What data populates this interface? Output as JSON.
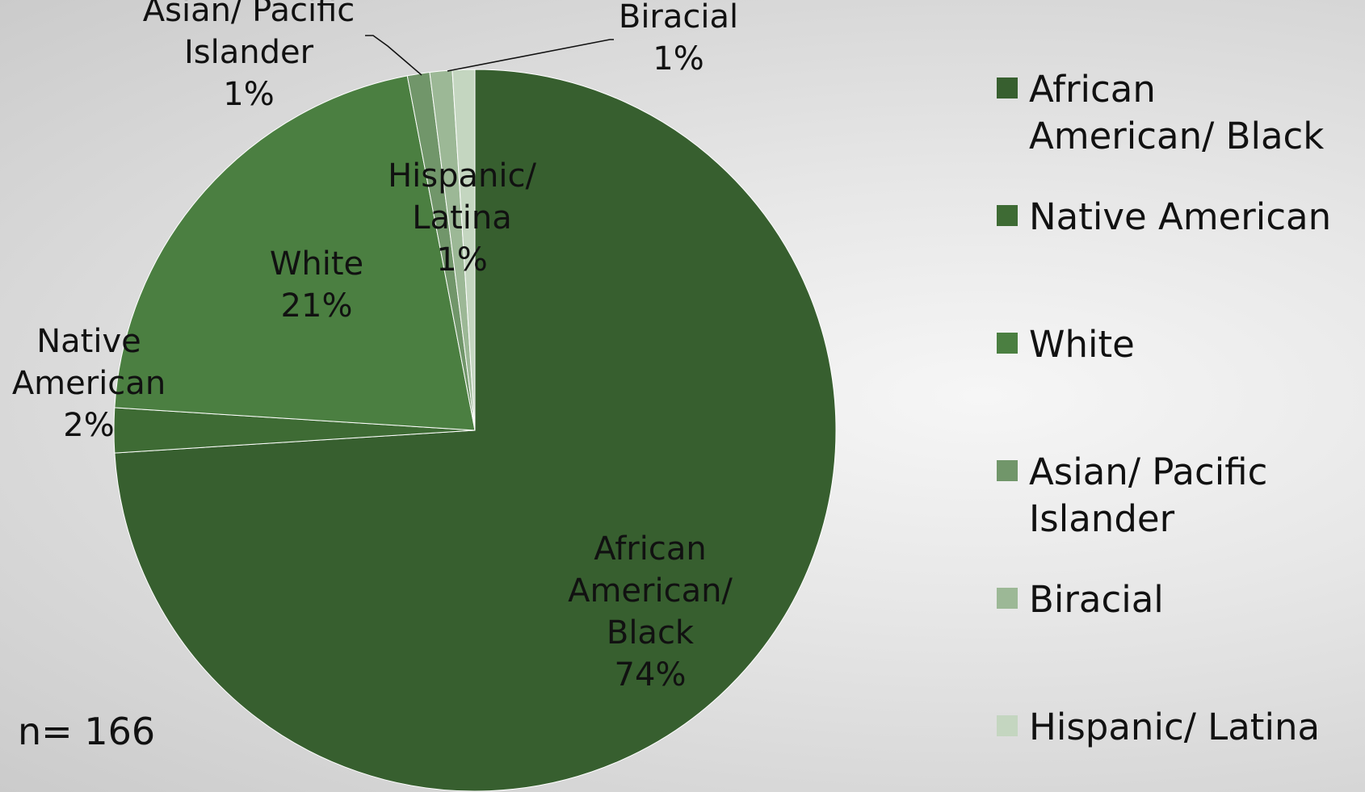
{
  "chart_data": {
    "type": "pie",
    "categories": [
      "African American/ Black",
      "Native American",
      "White",
      "Asian/ Pacific Islander",
      "Biracial",
      "Hispanic/ Latina"
    ],
    "values": [
      74,
      2,
      21,
      1,
      1,
      1
    ],
    "value_labels": [
      "74%",
      "2%",
      "21%",
      "1%",
      "1%",
      "1%"
    ],
    "slice_labels": [
      [
        "African",
        "American/",
        "Black",
        "74%"
      ],
      [
        "Native",
        "American",
        "2%"
      ],
      [
        "White",
        "21%"
      ],
      [
        "Asian/ Pacific",
        "Islander",
        "1%"
      ],
      [
        "Biracial",
        "1%"
      ],
      [
        "Hispanic/",
        "Latina",
        "1%"
      ]
    ],
    "colors": [
      "#375f2f",
      "#3e6b34",
      "#4b7f41",
      "#71966a",
      "#9cb896",
      "#c4d6c0"
    ],
    "legend": {
      "position": "right",
      "entries": [
        [
          "African",
          "American/ Black"
        ],
        [
          "Native American"
        ],
        [
          "White"
        ],
        [
          "Asian/ Pacific",
          "Islander"
        ],
        [
          "Biracial"
        ],
        [
          "Hispanic/ Latina"
        ]
      ]
    },
    "note": "n= 166"
  }
}
